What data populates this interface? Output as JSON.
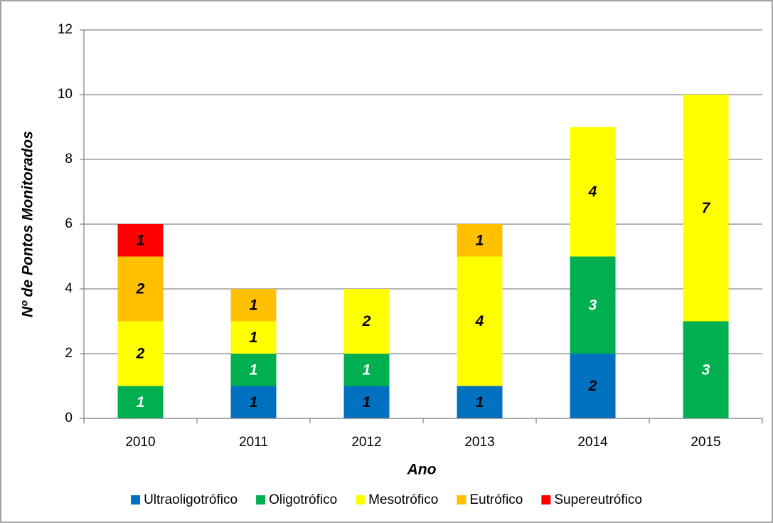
{
  "chart_data": {
    "type": "stacked_bar",
    "x_label": "Ano",
    "y_label": "Nº de Pontos Monitorados",
    "categories": [
      "2010",
      "2011",
      "2012",
      "2013",
      "2014",
      "2015"
    ],
    "series": [
      {
        "name": "Ultraoligotrófico",
        "color": "#0070c0",
        "label_color": "#000000",
        "values": [
          null,
          1,
          1,
          1,
          2,
          null
        ]
      },
      {
        "name": "Oligotrófico",
        "color": "#00b050",
        "label_color": "#ffffff",
        "values": [
          1,
          1,
          1,
          null,
          3,
          3
        ]
      },
      {
        "name": "Mesotrófico",
        "color": "#ffff00",
        "label_color": "#000000",
        "values": [
          2,
          1,
          2,
          4,
          4,
          7
        ]
      },
      {
        "name": "Eutrófico",
        "color": "#ffc000",
        "label_color": "#000000",
        "values": [
          2,
          1,
          null,
          1,
          null,
          null
        ]
      },
      {
        "name": "Supereutrófico",
        "color": "#ff0000",
        "label_color": "#000000",
        "values": [
          1,
          null,
          null,
          null,
          null,
          null
        ]
      }
    ],
    "ylim": [
      0,
      12
    ],
    "yticks": [
      0,
      2,
      4,
      6,
      8,
      10,
      12
    ],
    "grid": true,
    "legend": "bottom"
  }
}
